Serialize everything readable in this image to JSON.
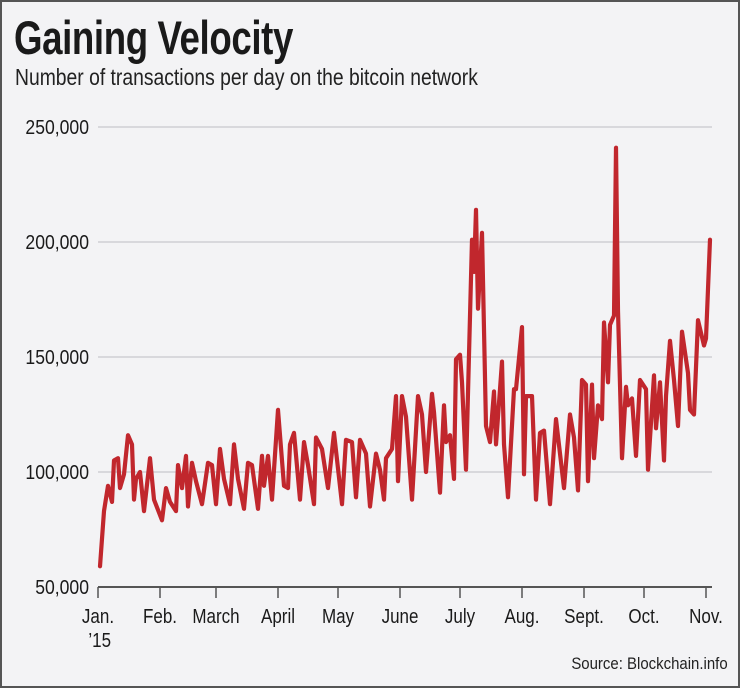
{
  "title": "Gaining Velocity",
  "subtitle": "Number of transactions per day on the bitcoin network",
  "source": "Source: Blockchain.info",
  "chart_data": {
    "type": "line",
    "title": "Gaining Velocity",
    "subtitle": "Number of transactions per day on the bitcoin network",
    "xlabel": "",
    "ylabel": "",
    "ylim": [
      50000,
      250000
    ],
    "xlim": [
      "2015-01-01",
      "2015-11-04"
    ],
    "yticks": [
      50000,
      100000,
      150000,
      200000,
      250000
    ],
    "ytick_labels": [
      "50,000",
      "100,000",
      "150,000",
      "200,000",
      "250,000"
    ],
    "xticks": [
      "2015-01-01",
      "2015-02-01",
      "2015-03-01",
      "2015-04-01",
      "2015-05-01",
      "2015-06-01",
      "2015-07-01",
      "2015-08-01",
      "2015-09-01",
      "2015-10-01",
      "2015-11-01"
    ],
    "xtick_labels": [
      "Jan.",
      "Feb.",
      "March",
      "April",
      "May",
      "June",
      "July",
      "Aug.",
      "Sept.",
      "Oct.",
      "Nov."
    ],
    "xtick_sublabel": "’15",
    "grid": "horizontal",
    "line_color": "#c1272d",
    "x": [
      "2015-01-02",
      "2015-01-04",
      "2015-01-06",
      "2015-01-08",
      "2015-01-09",
      "2015-01-11",
      "2015-01-12",
      "2015-01-14",
      "2015-01-16",
      "2015-01-18",
      "2015-01-19",
      "2015-01-20",
      "2015-01-22",
      "2015-01-24",
      "2015-01-27",
      "2015-01-29",
      "2015-02-02",
      "2015-02-04",
      "2015-02-06",
      "2015-02-09",
      "2015-02-10",
      "2015-02-12",
      "2015-02-14",
      "2015-02-15",
      "2015-02-17",
      "2015-02-19",
      "2015-02-22",
      "2015-02-25",
      "2015-02-27",
      "2015-03-01",
      "2015-03-03",
      "2015-03-05",
      "2015-03-08",
      "2015-03-10",
      "2015-03-12",
      "2015-03-15",
      "2015-03-17",
      "2015-03-19",
      "2015-03-22",
      "2015-03-24",
      "2015-03-25",
      "2015-03-27",
      "2015-03-29",
      "2015-04-01",
      "2015-04-04",
      "2015-04-06",
      "2015-04-07",
      "2015-04-09",
      "2015-04-12",
      "2015-04-14",
      "2015-04-16",
      "2015-04-19",
      "2015-04-20",
      "2015-04-23",
      "2015-04-26",
      "2015-04-29",
      "2015-05-03",
      "2015-05-05",
      "2015-05-08",
      "2015-05-10",
      "2015-05-12",
      "2015-05-15",
      "2015-05-17",
      "2015-05-20",
      "2015-05-22",
      "2015-05-24",
      "2015-05-25",
      "2015-05-28",
      "2015-05-30",
      "2015-05-31",
      "2015-06-02",
      "2015-06-04",
      "2015-06-07",
      "2015-06-10",
      "2015-06-12",
      "2015-06-14",
      "2015-06-17",
      "2015-06-18",
      "2015-06-21",
      "2015-06-23",
      "2015-06-24",
      "2015-06-26",
      "2015-06-28",
      "2015-06-29",
      "2015-07-01",
      "2015-07-02",
      "2015-07-04",
      "2015-07-07",
      "2015-07-08",
      "2015-07-09",
      "2015-07-10",
      "2015-07-12",
      "2015-07-14",
      "2015-07-16",
      "2015-07-18",
      "2015-07-19",
      "2015-07-22",
      "2015-07-23",
      "2015-07-25",
      "2015-07-28",
      "2015-07-29",
      "2015-08-01",
      "2015-08-02",
      "2015-08-03",
      "2015-08-06",
      "2015-08-08",
      "2015-08-10",
      "2015-08-12",
      "2015-08-15",
      "2015-08-18",
      "2015-08-22",
      "2015-08-25",
      "2015-08-27",
      "2015-08-29",
      "2015-08-31",
      "2015-09-02",
      "2015-09-03",
      "2015-09-05",
      "2015-09-06",
      "2015-09-08",
      "2015-09-10",
      "2015-09-11",
      "2015-09-13",
      "2015-09-14",
      "2015-09-16",
      "2015-09-17",
      "2015-09-18",
      "2015-09-20",
      "2015-09-22",
      "2015-09-23",
      "2015-09-25",
      "2015-09-27",
      "2015-09-29",
      "2015-10-02",
      "2015-10-03",
      "2015-10-06",
      "2015-10-07",
      "2015-10-09",
      "2015-10-11",
      "2015-10-12",
      "2015-10-14",
      "2015-10-16",
      "2015-10-18",
      "2015-10-20",
      "2015-10-23",
      "2015-10-24",
      "2015-10-26",
      "2015-10-28",
      "2015-10-31",
      "2015-11-01",
      "2015-11-03"
    ],
    "y": [
      59000,
      83000,
      94000,
      87000,
      105000,
      106000,
      93000,
      99000,
      116000,
      112000,
      88000,
      97000,
      100000,
      83000,
      106000,
      88000,
      79000,
      93000,
      87000,
      83000,
      103000,
      93000,
      107000,
      85000,
      104000,
      96000,
      86000,
      104000,
      103000,
      86000,
      110000,
      97000,
      86000,
      112000,
      97000,
      84000,
      104000,
      103000,
      84000,
      107000,
      94000,
      107000,
      88000,
      127000,
      94000,
      93000,
      112000,
      117000,
      88000,
      113000,
      103000,
      86000,
      115000,
      110000,
      93000,
      117000,
      86000,
      114000,
      113000,
      89000,
      114000,
      108000,
      85000,
      108000,
      101000,
      88000,
      106000,
      110000,
      133000,
      96000,
      133000,
      124000,
      88000,
      133000,
      125000,
      100000,
      134000,
      126000,
      91000,
      129000,
      113000,
      116000,
      97000,
      149000,
      151000,
      139000,
      101000,
      201000,
      187000,
      214000,
      171000,
      204000,
      120000,
      113000,
      135000,
      112000,
      148000,
      112000,
      89000,
      136000,
      136000,
      163000,
      99000,
      133000,
      133000,
      88000,
      117000,
      118000,
      86000,
      123000,
      93000,
      125000,
      115000,
      92000,
      140000,
      138000,
      96000,
      138000,
      106000,
      129000,
      123000,
      165000,
      139000,
      164000,
      168000,
      241000,
      170000,
      106000,
      137000,
      129000,
      132000,
      107000,
      140000,
      136000,
      101000,
      142000,
      119000,
      139000,
      105000,
      133000,
      157000,
      140000,
      120000,
      161000,
      143000,
      127000,
      125000,
      166000,
      155000,
      158000,
      201000
    ]
  }
}
